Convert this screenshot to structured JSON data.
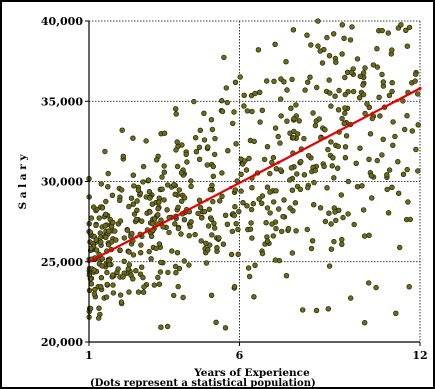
{
  "chart_data": {
    "type": "scatter",
    "title": "",
    "xlabel": "Years of Experience",
    "ylabel": "S a l a r y",
    "note": "(Dots represent a statistical population)",
    "xlim": [
      1,
      12
    ],
    "ylim": [
      20000,
      40000
    ],
    "x_ticks": [
      1,
      6,
      12
    ],
    "y_ticks": [
      20000,
      25000,
      30000,
      35000,
      40000
    ],
    "y_tick_labels": [
      "20,000",
      "25,000",
      "30,000",
      "35,000",
      "40,000"
    ],
    "grid": true,
    "regression_line": {
      "x": [
        1,
        12
      ],
      "y": [
        25000,
        35800
      ]
    },
    "point_count": 700,
    "colors": {
      "points": "#6b6b1e",
      "point_edge": "#1a1a00",
      "line": "#e60000",
      "grid": "#000000"
    }
  }
}
